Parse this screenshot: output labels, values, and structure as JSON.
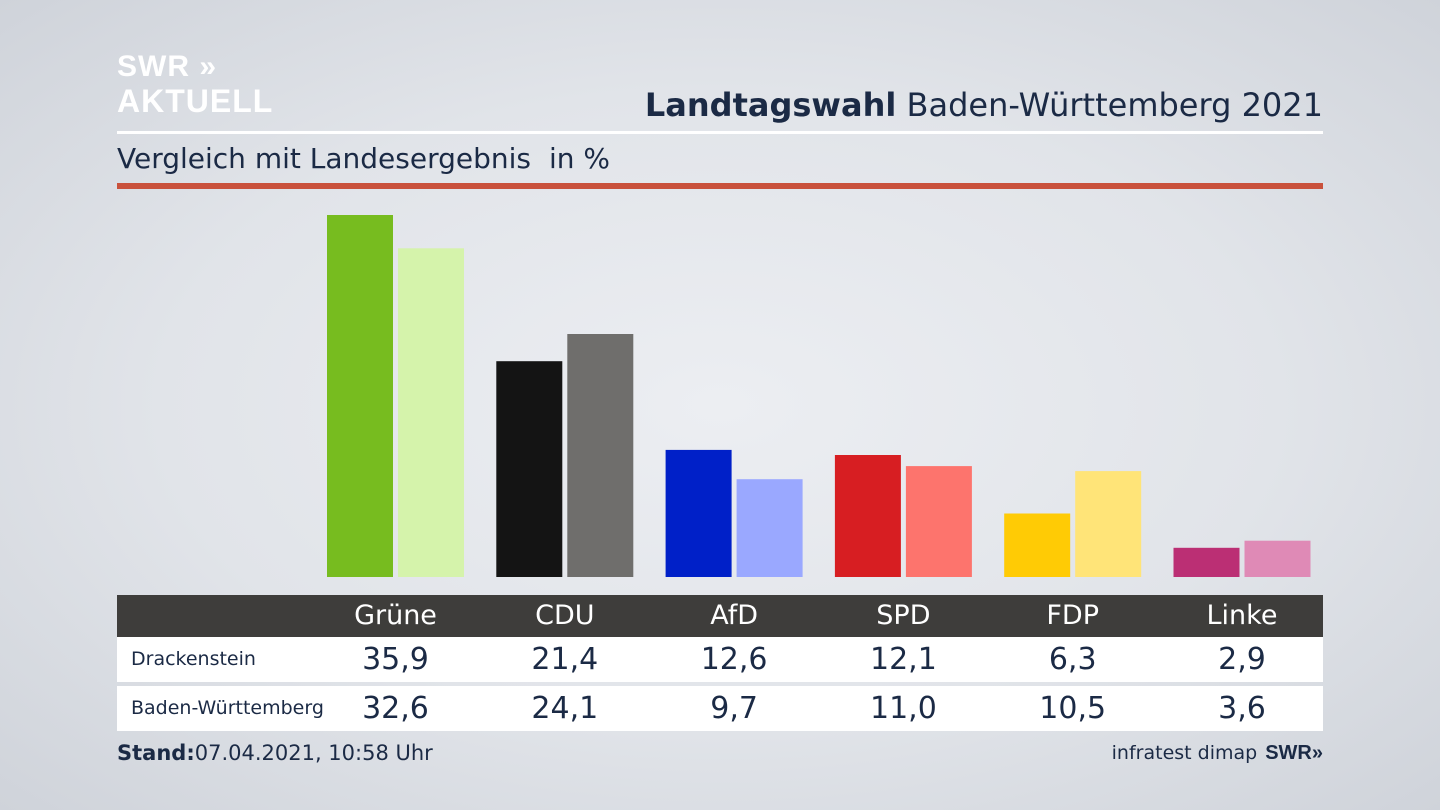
{
  "logo": {
    "line1": "SWR »",
    "line2": "AKTUELL"
  },
  "header": {
    "title_bold": "Landtagswahl",
    "title_rest": "Baden-Württemberg 2021",
    "subtitle": "Vergleich mit Landesergebnis",
    "unit": "in %"
  },
  "chart_data": {
    "type": "bar",
    "title": "Landtagswahl Baden-Württemberg 2021",
    "subtitle": "Vergleich mit Landesergebnis",
    "unit": "in %",
    "categories": [
      "Grüne",
      "CDU",
      "AfD",
      "SPD",
      "FDP",
      "Linke"
    ],
    "series": [
      {
        "name": "Drackenstein",
        "values": [
          35.9,
          21.4,
          12.6,
          12.1,
          6.3,
          2.9
        ],
        "value_labels": [
          "35,9",
          "21,4",
          "12,6",
          "12,1",
          "6,3",
          "2,9"
        ]
      },
      {
        "name": "Baden-Württemberg",
        "values": [
          32.6,
          24.1,
          9.7,
          11.0,
          10.5,
          3.6
        ],
        "value_labels": [
          "32,6",
          "24,1",
          "9,7",
          "11,0",
          "10,5",
          "3,6"
        ]
      }
    ],
    "colors": {
      "Drackenstein": [
        "#77bc1f",
        "#141414",
        "#0020c8",
        "#d71e22",
        "#ffcb05",
        "#bb2f74"
      ],
      "Baden-Württemberg": [
        "#d5f3ab",
        "#6f6e6c",
        "#9aa8ff",
        "#fd746d",
        "#ffe478",
        "#df8ab6"
      ]
    },
    "ylim": [
      0,
      35.9
    ],
    "grid": false,
    "legend": "table below chart"
  },
  "footer": {
    "stand_label": "Stand:",
    "stand_value": "07.04.2021, 10:58 Uhr",
    "source": "infratest dimap",
    "brand": "SWR»"
  }
}
